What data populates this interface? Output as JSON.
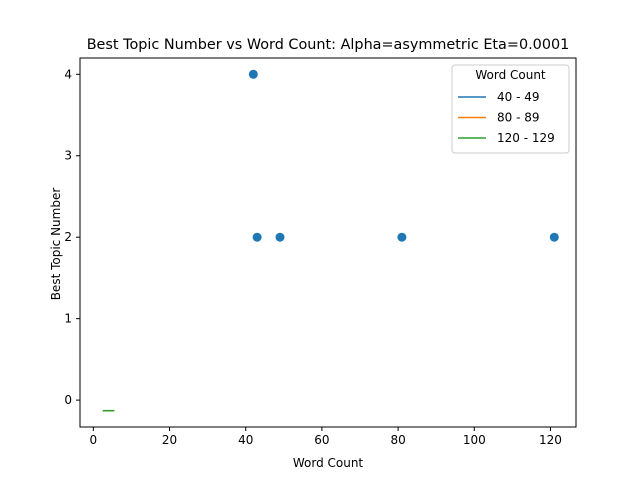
{
  "chart_data": {
    "type": "scatter",
    "title": "Best Topic Number vs Word Count: Alpha=asymmetric Eta=0.0001",
    "xlabel": "Word Count",
    "ylabel": "Best Topic Number",
    "xlim": [
      -3.5,
      126.7
    ],
    "ylim": [
      -0.33,
      4.2
    ],
    "xticks": [
      0,
      20,
      40,
      60,
      80,
      100,
      120
    ],
    "yticks": [
      0,
      1,
      2,
      3,
      4
    ],
    "grid": false,
    "points": [
      {
        "x": 42,
        "y": 4
      },
      {
        "x": 43,
        "y": 2
      },
      {
        "x": 49,
        "y": 2
      },
      {
        "x": 81,
        "y": 2
      },
      {
        "x": 121,
        "y": 2
      }
    ],
    "point_color": "#1f77b4",
    "series": [
      {
        "name": "40 - 49",
        "color": "#1f77b4",
        "x": [
          2.5,
          5.5
        ],
        "y": [
          -0.13,
          -0.13
        ]
      },
      {
        "name": "80 - 89",
        "color": "#ff7f0e",
        "x": [
          2.5,
          5.5
        ],
        "y": [
          -0.13,
          -0.13
        ]
      },
      {
        "name": "120 - 129",
        "color": "#2ca02c",
        "x": [
          2.5,
          5.5
        ],
        "y": [
          -0.13,
          -0.13
        ]
      }
    ],
    "legend": {
      "title": "Word Count",
      "placement": "top-right"
    }
  }
}
